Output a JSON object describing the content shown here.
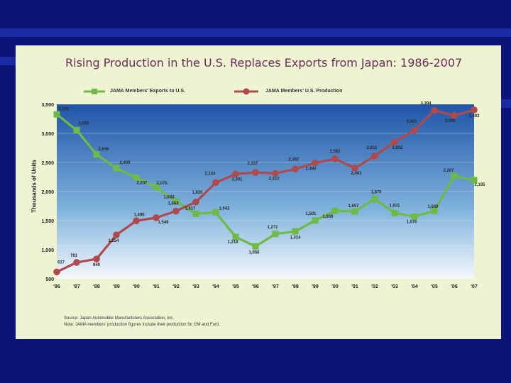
{
  "chart_data": {
    "type": "line",
    "title": "Rising Production in the U.S. Replaces Exports from Japan: 1986-2007",
    "ylabel": "Thousands of Units",
    "xlabel": "",
    "ylim": [
      500,
      3500
    ],
    "y_ticks": [
      "3,500",
      "3,000",
      "2,500",
      "2,000",
      "1,500",
      "1,000",
      "500"
    ],
    "y_tick_values": [
      3500,
      3000,
      2500,
      2000,
      1500,
      1000,
      500
    ],
    "categories": [
      "'86",
      "'87",
      "'88",
      "'89",
      "'90",
      "'91",
      "'92",
      "'93",
      "'94",
      "'95",
      "'96",
      "'97",
      "'98",
      "'99",
      "'00",
      "'01",
      "'02",
      "'03",
      "'04",
      "'05",
      "'06",
      "'07"
    ],
    "series": [
      {
        "name": "JAMA Members' Exports to U.S.",
        "color": "#6dbb45",
        "values": [
          3326,
          3055,
          2636,
          2400,
          2237,
          2075,
          1833,
          1617,
          1642,
          1219,
          1056,
          1271,
          1314,
          1501,
          1669,
          1657,
          1870,
          1631,
          1570,
          1669,
          2267,
          2195
        ],
        "labels": [
          "3,326",
          "3,055",
          "2,636",
          "2,400",
          "2,237",
          "2,075",
          "1,833",
          "1,617",
          "1,642",
          "1,219",
          "1,056",
          "1,271",
          "1,314",
          "1,501",
          "1,669",
          "1,657",
          "1,870",
          "1,631",
          "1,570",
          "1,669",
          "2,267",
          "2,195"
        ]
      },
      {
        "name": "JAMA Members' U.S. Production",
        "color": "#b0494c",
        "values": [
          617,
          781,
          840,
          1254,
          1496,
          1549,
          1663,
          1820,
          2153,
          2301,
          2327,
          2312,
          2387,
          2492,
          2562,
          2403,
          2611,
          2852,
          3051,
          3394,
          3306,
          3403
        ],
        "labels": [
          "617",
          "781",
          "840",
          "1,254",
          "1,496",
          "1,549",
          "1,663",
          "1,820",
          "2,153",
          "2,301",
          "2,327",
          "2,312",
          "2,387",
          "2,492",
          "2,562",
          "2,403",
          "2,611",
          "2,852",
          "3,051",
          "3,394",
          "3,306",
          "3,403"
        ]
      }
    ]
  },
  "notes": {
    "source": "Source: Japan Automobile Manufacturers Association, Inc.",
    "note": "Note: JAMA members' production figures include their production for GM and Ford."
  }
}
